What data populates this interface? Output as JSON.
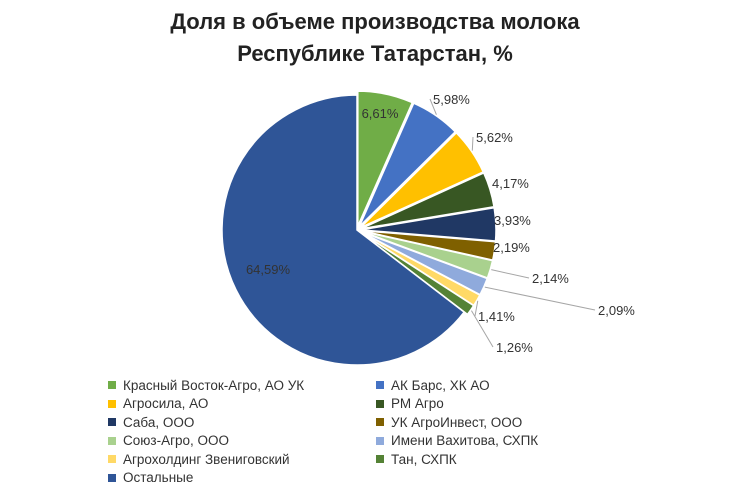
{
  "chart_data": {
    "type": "pie",
    "title": [
      "Доля в объеме производства молока",
      "Республике Татарстан, %"
    ],
    "slices": [
      {
        "name": "Красный Восток-Агро, АО УК",
        "value": 6.61,
        "label": "6,61%",
        "color": "#70AD47"
      },
      {
        "name": "АК Барс, ХК АО",
        "value": 5.98,
        "label": "5,98%",
        "color": "#4472C4"
      },
      {
        "name": "Агросила, АО",
        "value": 5.62,
        "label": "5,62%",
        "color": "#FFC000"
      },
      {
        "name": "РМ Агро",
        "value": 4.17,
        "label": "4,17%",
        "color": "#385723"
      },
      {
        "name": "Саба, ООО",
        "value": 3.93,
        "label": "3,93%",
        "color": "#203864"
      },
      {
        "name": "УК АгроИнвест, ООО",
        "value": 2.19,
        "label": "2,19%",
        "color": "#7F6000"
      },
      {
        "name": "Союз-Агро, ООО",
        "value": 2.14,
        "label": "2,14%",
        "color": "#A9D18E"
      },
      {
        "name": "Имени Вахитова, СХПК",
        "value": 2.09,
        "label": "2,09%",
        "color": "#8FAADC"
      },
      {
        "name": "Агрохолдинг Звениговский",
        "value": 1.41,
        "label": "1,41%",
        "color": "#FFD966"
      },
      {
        "name": "Тан, СХПК",
        "value": 1.26,
        "label": "1,26%",
        "color": "#548235"
      },
      {
        "name": "Остальные",
        "value": 64.59,
        "label": "64,59%",
        "color": "#2F5597"
      }
    ],
    "legend_position": "bottom"
  }
}
